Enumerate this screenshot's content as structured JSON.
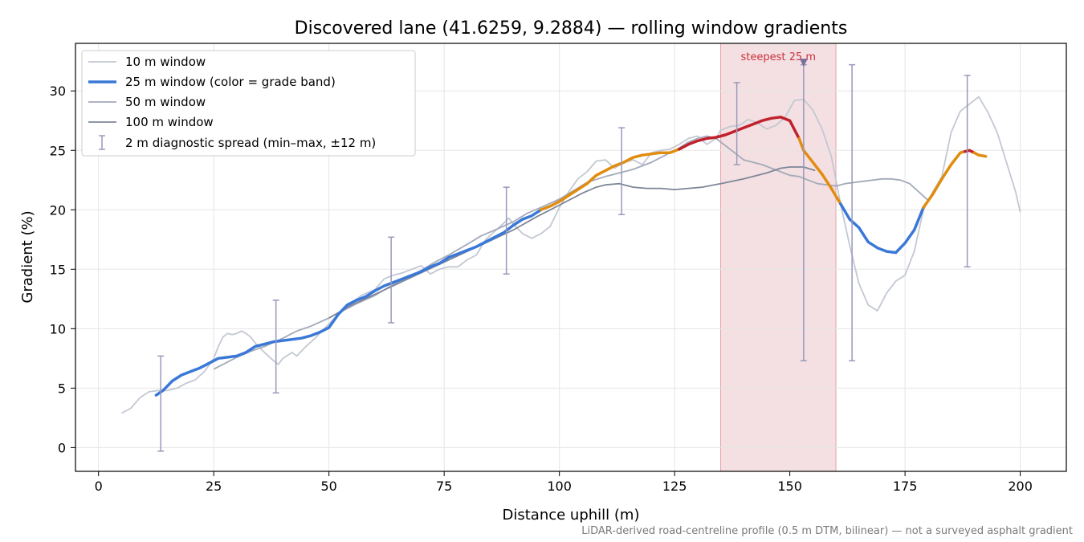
{
  "chart_data": {
    "type": "line",
    "title": "Discovered lane (41.6259, 9.2884) — rolling window gradients",
    "xlabel": "Distance uphill (m)",
    "ylabel": "Gradient (%)",
    "xlim": [
      -5,
      210
    ],
    "ylim": [
      -2,
      34
    ],
    "x_ticks": [
      0,
      25,
      50,
      75,
      100,
      125,
      150,
      175,
      200
    ],
    "y_ticks": [
      0,
      5,
      10,
      15,
      20,
      25,
      30
    ],
    "grid": true,
    "legend_position": "top-left",
    "footnote": "LiDAR-derived road-centreline profile (0.5 m DTM, bilinear) — not a surveyed asphalt gradient",
    "highlight": {
      "x_start": 135,
      "x_end": 160,
      "label": "steepest 25 m",
      "marker_x": 153,
      "marker_y": 32.3,
      "color": "#c9303c"
    },
    "grade_band_colors": {
      "moderate": "#3a78d8",
      "steep": "#e08c10",
      "very_steep": "#c0212c"
    },
    "series": [
      {
        "name": "10 m window",
        "color": "#c3c8d2",
        "points": [
          [
            5,
            2.9
          ],
          [
            7,
            3.3
          ],
          [
            9,
            4.2
          ],
          [
            11,
            4.7
          ],
          [
            13,
            4.8
          ],
          [
            15,
            4.8
          ],
          [
            17,
            5.0
          ],
          [
            19,
            5.4
          ],
          [
            21,
            5.7
          ],
          [
            23,
            6.4
          ],
          [
            25,
            7.5
          ],
          [
            26,
            8.5
          ],
          [
            27,
            9.3
          ],
          [
            28,
            9.6
          ],
          [
            29,
            9.5
          ],
          [
            30,
            9.6
          ],
          [
            31,
            9.8
          ],
          [
            32,
            9.6
          ],
          [
            33,
            9.3
          ],
          [
            34,
            8.8
          ],
          [
            36,
            8.0
          ],
          [
            38,
            7.3
          ],
          [
            39,
            7.0
          ],
          [
            40,
            7.5
          ],
          [
            42,
            8.0
          ],
          [
            43,
            7.7
          ],
          [
            45,
            8.5
          ],
          [
            47,
            9.2
          ],
          [
            49,
            10.0
          ],
          [
            51,
            10.8
          ],
          [
            53,
            11.5
          ],
          [
            55,
            12.2
          ],
          [
            57,
            12.8
          ],
          [
            60,
            13.3
          ],
          [
            62,
            14.2
          ],
          [
            64,
            14.5
          ],
          [
            66,
            14.7
          ],
          [
            68,
            15.0
          ],
          [
            70,
            15.3
          ],
          [
            72,
            14.6
          ],
          [
            74,
            15.0
          ],
          [
            76,
            15.2
          ],
          [
            78,
            15.2
          ],
          [
            80,
            15.8
          ],
          [
            82,
            16.2
          ],
          [
            84,
            17.5
          ],
          [
            86,
            18.2
          ],
          [
            88,
            18.9
          ],
          [
            89,
            19.3
          ],
          [
            90,
            18.8
          ],
          [
            92,
            18.0
          ],
          [
            94,
            17.6
          ],
          [
            96,
            18.0
          ],
          [
            98,
            18.6
          ],
          [
            100,
            20.2
          ],
          [
            102,
            21.5
          ],
          [
            104,
            22.6
          ],
          [
            106,
            23.2
          ],
          [
            108,
            24.1
          ],
          [
            110,
            24.2
          ],
          [
            112,
            23.5
          ],
          [
            114,
            24.0
          ],
          [
            116,
            24.2
          ],
          [
            118,
            23.8
          ],
          [
            120,
            24.8
          ],
          [
            122,
            25.0
          ],
          [
            124,
            25.1
          ],
          [
            126,
            25.5
          ],
          [
            128,
            26.0
          ],
          [
            130,
            26.2
          ],
          [
            132,
            25.5
          ],
          [
            134,
            26.0
          ],
          [
            135,
            26.7
          ],
          [
            137,
            27.0
          ],
          [
            139,
            27.1
          ],
          [
            141,
            27.6
          ],
          [
            143,
            27.3
          ],
          [
            145,
            26.8
          ],
          [
            147,
            27.1
          ],
          [
            149,
            27.8
          ],
          [
            150,
            28.5
          ],
          [
            151,
            29.2
          ],
          [
            153,
            29.3
          ],
          [
            155,
            28.4
          ],
          [
            157,
            26.8
          ],
          [
            159,
            24.5
          ],
          [
            161,
            20.5
          ],
          [
            163,
            17.0
          ],
          [
            165,
            13.8
          ],
          [
            167,
            12.0
          ],
          [
            169,
            11.5
          ],
          [
            171,
            13.0
          ],
          [
            173,
            14.0
          ],
          [
            175,
            14.5
          ],
          [
            177,
            16.5
          ],
          [
            179,
            20.0
          ],
          [
            181,
            21.5
          ],
          [
            183,
            22.8
          ],
          [
            185,
            26.5
          ],
          [
            187,
            28.3
          ],
          [
            189,
            28.9
          ],
          [
            191,
            29.5
          ],
          [
            193,
            28.2
          ],
          [
            195,
            26.5
          ],
          [
            197,
            24.0
          ],
          [
            199,
            21.5
          ],
          [
            200,
            19.8
          ]
        ]
      },
      {
        "name": "25 m window (color = grade band)",
        "color": "#3a78d8",
        "points": [
          [
            12.5,
            4.4
          ],
          [
            14,
            4.8
          ],
          [
            16,
            5.6
          ],
          [
            18,
            6.1
          ],
          [
            20,
            6.4
          ],
          [
            22,
            6.7
          ],
          [
            24,
            7.1
          ],
          [
            26,
            7.5
          ],
          [
            28,
            7.6
          ],
          [
            30,
            7.7
          ],
          [
            32,
            8.0
          ],
          [
            34,
            8.5
          ],
          [
            36,
            8.7
          ],
          [
            38,
            8.9
          ],
          [
            40,
            9.0
          ],
          [
            42,
            9.1
          ],
          [
            44,
            9.2
          ],
          [
            46,
            9.4
          ],
          [
            48,
            9.7
          ],
          [
            50,
            10.1
          ],
          [
            52,
            11.2
          ],
          [
            54,
            12.0
          ],
          [
            56,
            12.4
          ],
          [
            58,
            12.7
          ],
          [
            60,
            13.2
          ],
          [
            62,
            13.6
          ],
          [
            64,
            13.9
          ],
          [
            66,
            14.2
          ],
          [
            68,
            14.5
          ],
          [
            70,
            14.8
          ],
          [
            72,
            15.2
          ],
          [
            74,
            15.5
          ],
          [
            76,
            16.0
          ],
          [
            78,
            16.3
          ],
          [
            80,
            16.6
          ],
          [
            82,
            16.9
          ],
          [
            84,
            17.3
          ],
          [
            86,
            17.7
          ],
          [
            88,
            18.1
          ],
          [
            90,
            18.7
          ],
          [
            92,
            19.2
          ],
          [
            94,
            19.5
          ],
          [
            96,
            20.0
          ],
          [
            98,
            20.3
          ],
          [
            100,
            20.7
          ],
          [
            102,
            21.2
          ],
          [
            104,
            21.7
          ],
          [
            106,
            22.2
          ],
          [
            108,
            22.9
          ],
          [
            110,
            23.3
          ],
          [
            112,
            23.7
          ],
          [
            114,
            24.0
          ],
          [
            116,
            24.4
          ],
          [
            118,
            24.6
          ],
          [
            120,
            24.7
          ],
          [
            122,
            24.8
          ],
          [
            124,
            24.8
          ],
          [
            126,
            25.1
          ],
          [
            128,
            25.5
          ],
          [
            130,
            25.8
          ],
          [
            132,
            26.0
          ],
          [
            134,
            26.1
          ],
          [
            136,
            26.3
          ],
          [
            138,
            26.6
          ],
          [
            140,
            26.9
          ],
          [
            142,
            27.2
          ],
          [
            144,
            27.5
          ],
          [
            146,
            27.7
          ],
          [
            148,
            27.8
          ],
          [
            150,
            27.5
          ],
          [
            152,
            26.0
          ],
          [
            153,
            25.0
          ],
          [
            155,
            24.0
          ],
          [
            157,
            23.0
          ],
          [
            159,
            21.8
          ],
          [
            161,
            20.5
          ],
          [
            163,
            19.2
          ],
          [
            165,
            18.5
          ],
          [
            167,
            17.3
          ],
          [
            169,
            16.8
          ],
          [
            171,
            16.5
          ],
          [
            173,
            16.4
          ],
          [
            175,
            17.2
          ],
          [
            177,
            18.3
          ],
          [
            179,
            20.2
          ],
          [
            181,
            21.3
          ],
          [
            183,
            22.6
          ],
          [
            185,
            23.8
          ],
          [
            187,
            24.8
          ],
          [
            189,
            25.0
          ],
          [
            191,
            24.6
          ],
          [
            192.5,
            24.5
          ]
        ],
        "band_segments": [
          {
            "band": "moderate",
            "x_start": 12.5,
            "x_end": 96
          },
          {
            "band": "steep",
            "x_start": 96,
            "x_end": 126
          },
          {
            "band": "very_steep",
            "x_start": 126,
            "x_end": 152
          },
          {
            "band": "steep",
            "x_start": 152,
            "x_end": 161
          },
          {
            "band": "moderate",
            "x_start": 161,
            "x_end": 179
          },
          {
            "band": "steep",
            "x_start": 179,
            "x_end": 188
          },
          {
            "band": "very_steep",
            "x_start": 188,
            "x_end": 190
          },
          {
            "band": "steep",
            "x_start": 190,
            "x_end": 192.5
          }
        ]
      },
      {
        "name": "50 m window",
        "color": "#a3aab9",
        "points": [
          [
            25,
            6.6
          ],
          [
            27,
            7.0
          ],
          [
            30,
            7.6
          ],
          [
            33,
            8.1
          ],
          [
            36,
            8.5
          ],
          [
            40,
            9.2
          ],
          [
            43,
            9.8
          ],
          [
            46,
            10.2
          ],
          [
            50,
            10.9
          ],
          [
            53,
            11.5
          ],
          [
            56,
            12.1
          ],
          [
            60,
            12.8
          ],
          [
            63,
            13.5
          ],
          [
            66,
            14.1
          ],
          [
            70,
            14.9
          ],
          [
            73,
            15.6
          ],
          [
            76,
            16.2
          ],
          [
            80,
            17.1
          ],
          [
            83,
            17.8
          ],
          [
            86,
            18.3
          ],
          [
            90,
            19.0
          ],
          [
            93,
            19.7
          ],
          [
            96,
            20.2
          ],
          [
            100,
            20.9
          ],
          [
            103,
            21.6
          ],
          [
            106,
            22.3
          ],
          [
            110,
            22.8
          ],
          [
            113,
            23.1
          ],
          [
            116,
            23.4
          ],
          [
            120,
            24.0
          ],
          [
            123,
            24.6
          ],
          [
            126,
            25.2
          ],
          [
            128,
            25.7
          ],
          [
            130,
            26.0
          ],
          [
            132,
            26.2
          ],
          [
            134,
            26.0
          ],
          [
            136,
            25.4
          ],
          [
            138,
            24.8
          ],
          [
            140,
            24.2
          ],
          [
            142,
            24.0
          ],
          [
            144,
            23.8
          ],
          [
            146,
            23.5
          ],
          [
            148,
            23.2
          ],
          [
            150,
            22.9
          ],
          [
            152,
            22.8
          ],
          [
            154,
            22.5
          ],
          [
            156,
            22.2
          ],
          [
            158,
            22.1
          ],
          [
            160,
            22.0
          ],
          [
            162,
            22.2
          ],
          [
            164,
            22.3
          ],
          [
            166,
            22.4
          ],
          [
            168,
            22.5
          ],
          [
            170,
            22.6
          ],
          [
            172,
            22.6
          ],
          [
            174,
            22.5
          ],
          [
            176,
            22.2
          ],
          [
            178,
            21.5
          ],
          [
            180,
            20.8
          ]
        ]
      },
      {
        "name": "100 m window",
        "color": "#7e8798",
        "points": [
          [
            50,
            10.9
          ],
          [
            55,
            12.0
          ],
          [
            60,
            12.9
          ],
          [
            65,
            13.8
          ],
          [
            70,
            14.7
          ],
          [
            75,
            15.6
          ],
          [
            80,
            16.5
          ],
          [
            85,
            17.4
          ],
          [
            90,
            18.3
          ],
          [
            95,
            19.4
          ],
          [
            100,
            20.4
          ],
          [
            105,
            21.4
          ],
          [
            108,
            21.9
          ],
          [
            110,
            22.1
          ],
          [
            113,
            22.2
          ],
          [
            116,
            21.9
          ],
          [
            119,
            21.8
          ],
          [
            122,
            21.8
          ],
          [
            125,
            21.7
          ],
          [
            128,
            21.8
          ],
          [
            131,
            21.9
          ],
          [
            135,
            22.2
          ],
          [
            140,
            22.6
          ],
          [
            145,
            23.1
          ],
          [
            148,
            23.5
          ],
          [
            150,
            23.6
          ],
          [
            153,
            23.6
          ],
          [
            155.5,
            23.3
          ]
        ]
      }
    ],
    "error_bars": {
      "name": "2 m diagnostic spread (min–max, ±12 m)",
      "color": "#9a98bb",
      "bars": [
        {
          "x": 13.5,
          "low": -0.3,
          "high": 7.7
        },
        {
          "x": 38.5,
          "low": 4.6,
          "high": 12.4
        },
        {
          "x": 63.5,
          "low": 10.5,
          "high": 17.7
        },
        {
          "x": 88.5,
          "low": 14.6,
          "high": 21.9
        },
        {
          "x": 113.5,
          "low": 19.6,
          "high": 26.9
        },
        {
          "x": 138.5,
          "low": 23.8,
          "high": 30.7
        },
        {
          "x": 153,
          "low": 7.3,
          "high": 32.2
        },
        {
          "x": 163.5,
          "low": 7.3,
          "high": 32.2
        },
        {
          "x": 188.5,
          "low": 15.2,
          "high": 31.3
        }
      ]
    }
  }
}
